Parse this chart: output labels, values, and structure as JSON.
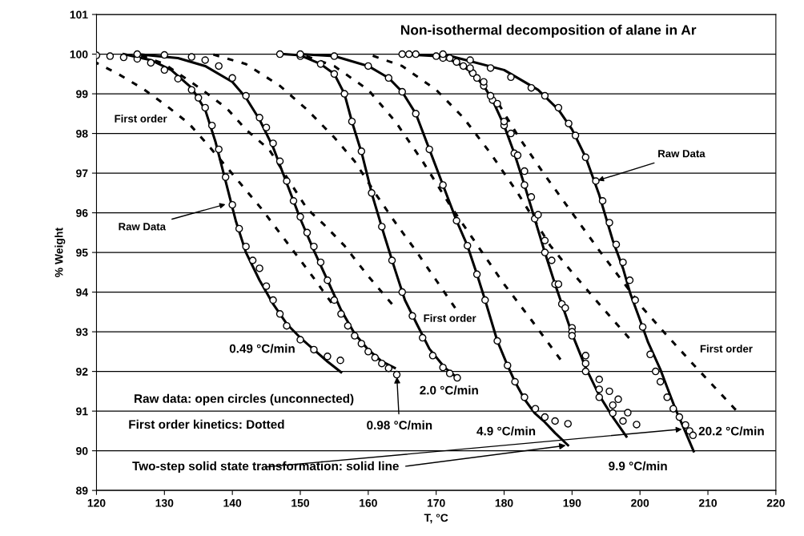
{
  "chart_data": {
    "type": "line",
    "title": "Non-isothermal decomposition of alane in Ar",
    "xlabel": "T, °C",
    "ylabel": "% Weight",
    "xlim": [
      120,
      220
    ],
    "xticks": [
      120,
      130,
      140,
      150,
      160,
      170,
      180,
      190,
      200,
      210,
      220
    ],
    "ylim": [
      89,
      101
    ],
    "yticks": [
      89,
      90,
      91,
      92,
      93,
      94,
      95,
      96,
      97,
      98,
      99,
      100,
      101
    ],
    "grid": "y",
    "legend": false,
    "series": [
      {
        "line_style": "dashed",
        "color": "#000000",
        "x": [
          120,
          123.3,
          127,
          130.3,
          133.6,
          136.6,
          140.3,
          144.3,
          148.4,
          151.7,
          154.6
        ],
        "values": [
          99.78,
          99.49,
          99.11,
          98.7,
          98.25,
          97.67,
          96.92,
          96.1,
          95.17,
          94.42,
          93.73
        ]
      },
      {
        "line_style": "dashed",
        "color": "#000000",
        "x": [
          126,
          130,
          135.5,
          139.2,
          142.1,
          145.4,
          148,
          151,
          153.5,
          156.5,
          160,
          163.5
        ],
        "values": [
          100,
          99.75,
          99.11,
          98.63,
          98.08,
          97.6,
          96.9,
          96.1,
          95.7,
          95.17,
          94.4,
          93.7
        ]
      },
      {
        "line_style": "dashed",
        "color": "#000000",
        "x": [
          137,
          142,
          147,
          151,
          155,
          158,
          161,
          164,
          166.9,
          170,
          172.8
        ],
        "values": [
          100,
          99.75,
          99.2,
          98.6,
          97.9,
          97.3,
          96.5,
          95.75,
          95.07,
          94.3,
          93.6
        ]
      },
      {
        "line_style": "dashed",
        "color": "#000000",
        "x": [
          150,
          155,
          160,
          164,
          168,
          172,
          176.5,
          180,
          184,
          188.3
        ],
        "values": [
          100,
          99.7,
          99.1,
          98.3,
          97.3,
          96.2,
          95.07,
          94.2,
          93.3,
          92.3
        ]
      },
      {
        "line_style": "dashed",
        "color": "#000000",
        "x": [
          160,
          165,
          170,
          174,
          178,
          182,
          186.8,
          190,
          194,
          198.4
        ],
        "values": [
          100,
          99.7,
          99.1,
          98.4,
          97.5,
          96.5,
          95.17,
          94.5,
          93.7,
          92.84
        ]
      },
      {
        "line_style": "dashed",
        "color": "#000000",
        "x": [
          170,
          173,
          176,
          179,
          182,
          186,
          190,
          194,
          198.2,
          200.4,
          204,
          208,
          211,
          214.1
        ],
        "values": [
          100,
          99.8,
          99.4,
          98.8,
          97.95,
          96.95,
          96,
          95.05,
          94.1,
          93.6,
          92.9,
          92.15,
          91.6,
          91.03
        ]
      },
      {
        "line_style": "solid",
        "color": "#000000",
        "x": [
          124,
          128,
          131,
          134,
          136,
          137.5,
          139,
          140.5,
          142,
          144,
          146,
          148,
          150,
          152,
          154,
          156
        ],
        "values": [
          100,
          99.85,
          99.6,
          99.15,
          98.6,
          97.8,
          96.8,
          95.8,
          95,
          94.3,
          93.7,
          93.2,
          92.85,
          92.55,
          92.25,
          91.98
        ]
      },
      {
        "line_style": "solid",
        "color": "#000000",
        "x": [
          126,
          132,
          136,
          140,
          142,
          144,
          146,
          148,
          150,
          152,
          154,
          156,
          158,
          160,
          162,
          163.9
        ],
        "values": [
          100,
          99.9,
          99.7,
          99.3,
          98.9,
          98.35,
          97.65,
          96.75,
          95.85,
          95.05,
          94.3,
          93.55,
          92.95,
          92.55,
          92.25,
          92.09
        ]
      },
      {
        "line_style": "solid",
        "color": "#000000",
        "x": [
          147.6,
          150,
          153,
          155,
          156.5,
          157.6,
          159.1,
          160.6,
          162.4,
          163.9,
          165.4,
          167.2,
          169,
          171.3,
          172.8,
          173.1
        ],
        "values": [
          100,
          99.97,
          99.75,
          99.5,
          99,
          98.3,
          97.47,
          96.44,
          95.41,
          94.59,
          93.8,
          93.18,
          92.57,
          92.09,
          91.88,
          91.84
        ]
      },
      {
        "line_style": "solid",
        "color": "#000000",
        "x": [
          150,
          155,
          160,
          163,
          165,
          167,
          169,
          171,
          173,
          174.6,
          176,
          177.2,
          179,
          180.5,
          181.6,
          183,
          184.5,
          186,
          187.5,
          189.4
        ],
        "values": [
          100,
          99.95,
          99.7,
          99.4,
          99.05,
          98.5,
          97.6,
          96.7,
          95.8,
          95.17,
          94.45,
          93.8,
          92.77,
          92.15,
          91.74,
          91.3,
          90.95,
          90.72,
          90.45,
          90.14
        ]
      },
      {
        "line_style": "solid",
        "color": "#000000",
        "x": [
          165,
          170,
          173,
          175.4,
          177,
          178.3,
          180,
          181.5,
          183,
          184.5,
          186,
          187.5,
          188.5,
          190,
          192,
          194,
          196,
          198
        ],
        "values": [
          100,
          99.95,
          99.8,
          99.52,
          99.2,
          98.84,
          98.2,
          97.5,
          96.7,
          95.85,
          95,
          94.2,
          93.7,
          92.95,
          92.1,
          91.4,
          90.85,
          90.36
        ]
      },
      {
        "line_style": "solid",
        "color": "#000000",
        "x": [
          171,
          180,
          185,
          188,
          190,
          192,
          194,
          196,
          197.5,
          198.6,
          200,
          201.2,
          203,
          204,
          205.2,
          206.5,
          207.9
        ],
        "values": [
          100,
          99.6,
          99.1,
          98.6,
          98.1,
          97.4,
          96.45,
          95.3,
          94.6,
          93.95,
          93.3,
          92.73,
          92.05,
          91.6,
          91.06,
          90.55,
          89.99
        ]
      },
      {
        "type": "scatter",
        "marker": "circle",
        "color": "#000000",
        "x": [
          120,
          122,
          124,
          126,
          128,
          130,
          132,
          134,
          135,
          136,
          137,
          138,
          139,
          140,
          141,
          142,
          143,
          144,
          145,
          146,
          147,
          148,
          150,
          152,
          154,
          155.9
        ],
        "values": [
          99.97,
          99.95,
          99.92,
          99.88,
          99.78,
          99.6,
          99.38,
          99.1,
          98.9,
          98.65,
          98.2,
          97.6,
          96.9,
          96.2,
          95.6,
          95.15,
          94.8,
          94.6,
          94.15,
          93.8,
          93.45,
          93.15,
          92.8,
          92.55,
          92.38,
          92.28
        ]
      },
      {
        "type": "scatter",
        "marker": "circle",
        "color": "#000000",
        "x": [
          126,
          130,
          134,
          136,
          138,
          140,
          142,
          144,
          145,
          146,
          147,
          148,
          149,
          150,
          151,
          152,
          153,
          154,
          155,
          156,
          157,
          158,
          159,
          160,
          161,
          162,
          163,
          164.2
        ],
        "values": [
          100,
          99.98,
          99.93,
          99.85,
          99.7,
          99.4,
          98.95,
          98.4,
          98.15,
          97.75,
          97.3,
          96.8,
          96.3,
          95.9,
          95.5,
          95.15,
          94.75,
          94.3,
          93.8,
          93.45,
          93.15,
          92.9,
          92.7,
          92.5,
          92.35,
          92.2,
          92.08,
          91.92
        ]
      },
      {
        "type": "scatter",
        "marker": "circle",
        "color": "#000000",
        "x": [
          147,
          150,
          153,
          155,
          156.5,
          157.6,
          159,
          160.5,
          162,
          163.5,
          165,
          166.5,
          168,
          169.5,
          171,
          172,
          173.1
        ],
        "values": [
          100,
          99.95,
          99.75,
          99.5,
          99,
          98.3,
          97.55,
          96.5,
          95.65,
          94.8,
          94,
          93.4,
          92.85,
          92.4,
          92.1,
          91.95,
          91.84
        ]
      },
      {
        "type": "scatter",
        "marker": "circle",
        "color": "#000000",
        "x": [
          150,
          155,
          160,
          163,
          165,
          167,
          169,
          171,
          173,
          174.6,
          176,
          177.2,
          179,
          180.5,
          181.6,
          183,
          184.6,
          186,
          187.5,
          189.4
        ],
        "values": [
          100,
          99.95,
          99.7,
          99.4,
          99.05,
          98.5,
          97.6,
          96.7,
          95.8,
          95.17,
          94.45,
          93.8,
          92.77,
          92.15,
          91.74,
          91.35,
          91.06,
          90.85,
          90.75,
          90.68
        ]
      },
      {
        "type": "scatter",
        "marker": "circle",
        "color": "#000000",
        "x": [
          165,
          170,
          173,
          175.4,
          177,
          178.3,
          180,
          181.5,
          183,
          184.5,
          186,
          187.5,
          188.5,
          190,
          192,
          194,
          195.5,
          196.8
        ],
        "values": [
          100,
          99.95,
          99.8,
          99.52,
          99.2,
          98.84,
          98.2,
          97.5,
          96.7,
          95.85,
          95,
          94.2,
          93.7,
          93.1,
          92.4,
          91.8,
          91.5,
          91.3
        ]
      },
      {
        "type": "scatter",
        "marker": "circle",
        "color": "#000000",
        "x": [
          166,
          171,
          174,
          176,
          178,
          180,
          182,
          184,
          186,
          188,
          190,
          192,
          194,
          196,
          198.2
        ],
        "values": [
          100,
          99.9,
          99.7,
          99.4,
          98.95,
          98.3,
          97.45,
          96.4,
          95.3,
          94.2,
          93,
          92.2,
          91.55,
          91.15,
          90.96
        ]
      },
      {
        "type": "scatter",
        "marker": "circle",
        "color": "#000000",
        "x": [
          167,
          172,
          175,
          177,
          179,
          181,
          183,
          185,
          187,
          189,
          190,
          192,
          194,
          196,
          197.5,
          199.5
        ],
        "values": [
          100,
          99.9,
          99.65,
          99.3,
          98.75,
          98,
          97.05,
          95.95,
          94.8,
          93.6,
          92.9,
          92,
          91.35,
          90.95,
          90.75,
          90.66
        ]
      },
      {
        "type": "scatter",
        "marker": "circle",
        "color": "#000000",
        "x": [
          171,
          175,
          178,
          181,
          184,
          186,
          188,
          189.5,
          190.5,
          192,
          193.5,
          194.5,
          195.5,
          196.5,
          197.5,
          198.5,
          199.3,
          200.4,
          201.5,
          202.3,
          203,
          204,
          204.9,
          205.8,
          206.7,
          207.3,
          207.8
        ],
        "values": [
          100,
          99.85,
          99.65,
          99.42,
          99.15,
          98.95,
          98.65,
          98.25,
          97.95,
          97.4,
          96.8,
          96.3,
          95.75,
          95.2,
          94.75,
          94.3,
          93.8,
          93.12,
          92.43,
          92,
          91.74,
          91.35,
          91.06,
          90.85,
          90.65,
          90.5,
          90.39
        ]
      }
    ],
    "annotations": [
      "First order",
      {
        "text": "Raw Data",
        "x": 139.3,
        "y": 96.23
      },
      "First order",
      {
        "text": "Raw Data",
        "x": 193.5,
        "y": 96.8
      },
      "First order",
      "0.49 °C/min",
      {
        "text": "0.98 °C/min",
        "x": 164.2,
        "y": 91.92
      },
      "2.0 °C/min",
      "4.9 °C/min",
      "20.2 °C/min",
      "9.9 °C/min",
      "Raw data: open circles (unconnected)",
      "First order kinetics: Dotted",
      {
        "text": "Two-step solid state transformation: solid line",
        "x": 189.4,
        "y": 90.14
      }
    ]
  }
}
